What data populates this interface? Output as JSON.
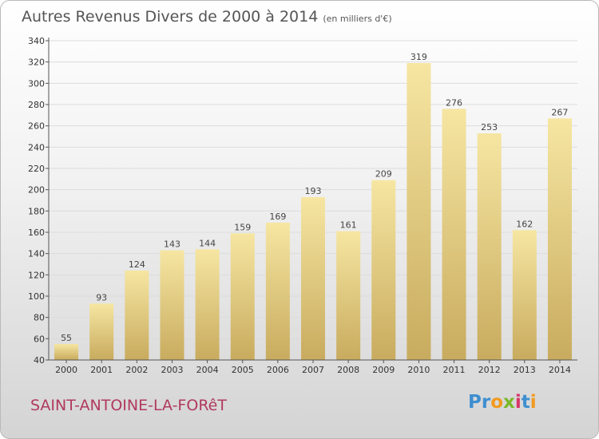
{
  "title": "Autres Revenus Divers de 2000 à 2014",
  "title_unit": "(en milliers d'€)",
  "place": "SAINT-ANTOINE-LA-FORêT",
  "logo": {
    "text": "Proxiti",
    "letters": [
      "P",
      "r",
      "o",
      "x",
      "i",
      "t",
      "i"
    ],
    "colors": [
      "#3f8fd0",
      "#3f8fd0",
      "#f29a1e",
      "#7ab828",
      "#d8356a",
      "#3f8fd0",
      "#f29a1e"
    ]
  },
  "colors": {
    "bar_light": "#f6e6a2",
    "bar_dark": "#c8ab5e",
    "place": "#b03a5e"
  },
  "chart_data": {
    "type": "bar",
    "title": "Autres Revenus Divers de 2000 à 2014",
    "xlabel": "",
    "ylabel": "",
    "categories": [
      "2000",
      "2001",
      "2002",
      "2003",
      "2004",
      "2005",
      "2006",
      "2007",
      "2008",
      "2009",
      "2010",
      "2011",
      "2012",
      "2013",
      "2014"
    ],
    "values": [
      55,
      93,
      124,
      143,
      144,
      159,
      169,
      193,
      161,
      209,
      319,
      276,
      253,
      162,
      267
    ],
    "ylim": [
      40,
      340
    ],
    "yticks": [
      40,
      60,
      80,
      100,
      120,
      140,
      160,
      180,
      200,
      220,
      240,
      260,
      280,
      300,
      320,
      340
    ],
    "grid": true,
    "legend": "none"
  }
}
